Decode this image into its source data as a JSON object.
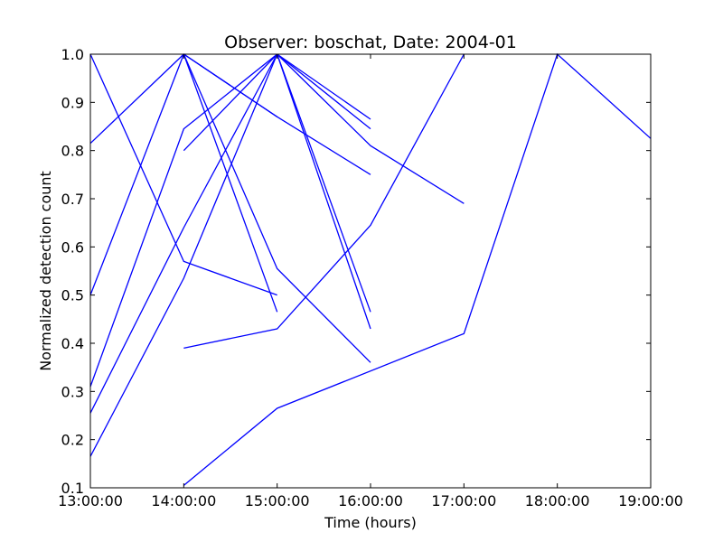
{
  "chart_data": {
    "type": "line",
    "title": "Observer: boschat, Date: 2004-01",
    "xlabel": "Time (hours)",
    "ylabel": "Normalized detection count",
    "xlim": [
      "13:00:00",
      "19:00:00"
    ],
    "ylim": [
      0.1,
      1.0
    ],
    "x_ticks": [
      "13:00:00",
      "14:00:00",
      "15:00:00",
      "16:00:00",
      "17:00:00",
      "18:00:00",
      "19:00:00"
    ],
    "y_ticks": [
      "0.1",
      "0.2",
      "0.3",
      "0.4",
      "0.5",
      "0.6",
      "0.7",
      "0.8",
      "0.9",
      "1.0"
    ],
    "grid": false,
    "line_color": "#0000ff",
    "series": [
      {
        "x": [
          "13:00:00",
          "14:00:00",
          "15:00:00"
        ],
        "y": [
          0.815,
          1.0,
          0.87
        ]
      },
      {
        "x": [
          "13:00:00",
          "14:00:00",
          "15:00:00"
        ],
        "y": [
          1.0,
          0.57,
          0.5
        ]
      },
      {
        "x": [
          "13:00:00",
          "14:00:00"
        ],
        "y": [
          0.5,
          1.0
        ]
      },
      {
        "x": [
          "13:00:00",
          "14:00:00",
          "15:00:00"
        ],
        "y": [
          0.31,
          0.845,
          1.0
        ]
      },
      {
        "x": [
          "13:00:00",
          "14:00:00",
          "15:00:00"
        ],
        "y": [
          0.255,
          0.64,
          1.0
        ]
      },
      {
        "x": [
          "13:00:00",
          "14:00:00",
          "15:00:00"
        ],
        "y": [
          0.165,
          0.535,
          1.0
        ]
      },
      {
        "x": [
          "14:00:00",
          "15:00:00"
        ],
        "y": [
          0.8,
          1.0
        ]
      },
      {
        "x": [
          "14:00:00",
          "15:00:00"
        ],
        "y": [
          1.0,
          0.465
        ]
      },
      {
        "x": [
          "14:00:00",
          "15:00:00",
          "16:00:00"
        ],
        "y": [
          1.0,
          0.555,
          0.36
        ]
      },
      {
        "x": [
          "14:00:00",
          "15:00:00",
          "16:00:00"
        ],
        "y": [
          1.0,
          0.87,
          0.75
        ]
      },
      {
        "x": [
          "14:00:00",
          "15:00:00",
          "16:00:00",
          "17:00:00"
        ],
        "y": [
          0.39,
          0.43,
          0.645,
          1.0
        ]
      },
      {
        "x": [
          "14:00:00",
          "15:00:00",
          "17:00:00",
          "18:00:00",
          "19:00:00"
        ],
        "y": [
          0.105,
          0.265,
          0.42,
          1.0,
          0.825
        ]
      },
      {
        "x": [
          "15:00:00",
          "16:00:00"
        ],
        "y": [
          1.0,
          0.865
        ]
      },
      {
        "x": [
          "15:00:00",
          "16:00:00"
        ],
        "y": [
          1.0,
          0.845
        ]
      },
      {
        "x": [
          "15:00:00",
          "16:00:00"
        ],
        "y": [
          1.0,
          0.465
        ]
      },
      {
        "x": [
          "15:00:00",
          "16:00:00"
        ],
        "y": [
          1.0,
          0.43
        ]
      },
      {
        "x": [
          "15:00:00",
          "16:00:00",
          "17:00:00"
        ],
        "y": [
          1.0,
          0.81,
          0.69
        ]
      }
    ]
  }
}
